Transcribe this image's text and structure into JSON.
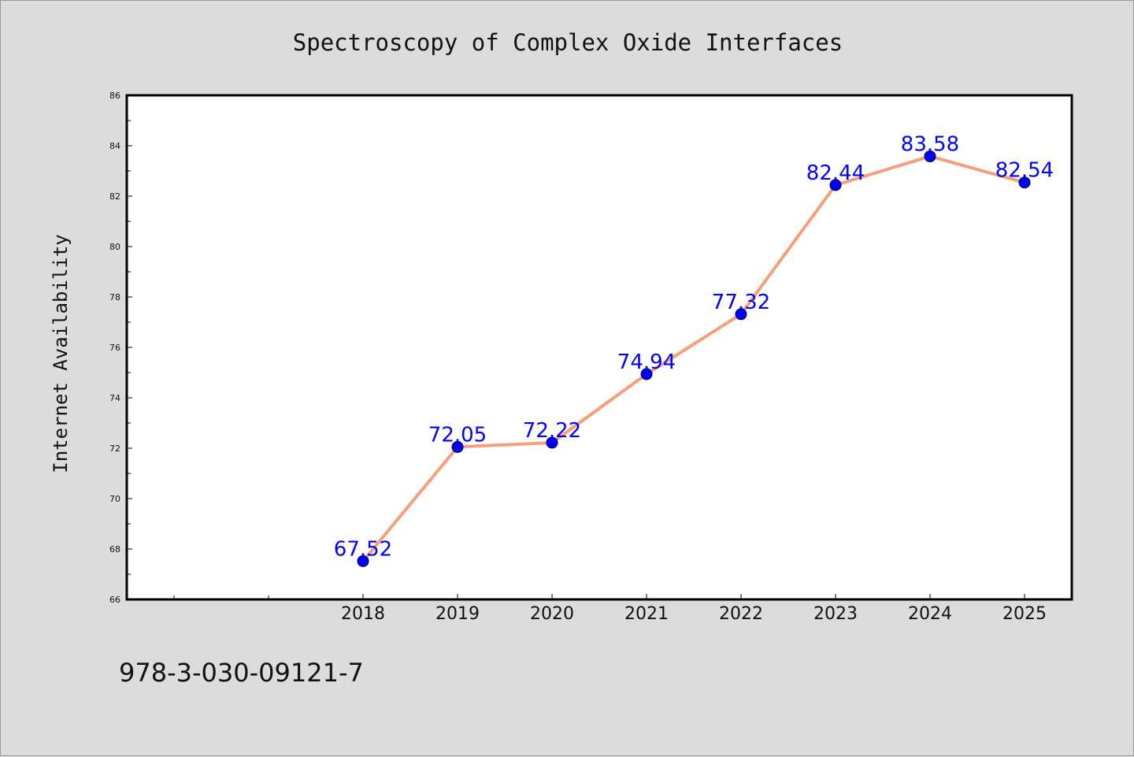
{
  "chart_data": {
    "type": "line",
    "title": "Spectroscopy of Complex Oxide Interfaces",
    "xlabel": "",
    "ylabel": "Internet Availability",
    "x": [
      "2018",
      "2019",
      "2020",
      "2021",
      "2022",
      "2023",
      "2024",
      "2025"
    ],
    "series": [
      {
        "values": [
          67.52,
          72.05,
          72.22,
          74.94,
          77.32,
          82.44,
          83.58,
          82.54
        ],
        "labels": [
          "67.52",
          "72.05",
          "72.22",
          "74.94",
          "77.32",
          "82.44",
          "83.58",
          "82.54"
        ]
      }
    ],
    "ylim": [
      66,
      86
    ],
    "yticks": [
      "66",
      "68",
      "70",
      "72",
      "74",
      "76",
      "78",
      "80",
      "82",
      "84",
      "86"
    ],
    "grid": false,
    "legend": "none",
    "colors": {
      "line": "#f5a07a",
      "marker": "#0000ff",
      "data_label": "#0000ff",
      "background": "#dcdcdc",
      "plot_background": "#ffffff",
      "frame": "#000000"
    }
  },
  "footer": {
    "isbn": "978-3-030-09121-7"
  }
}
